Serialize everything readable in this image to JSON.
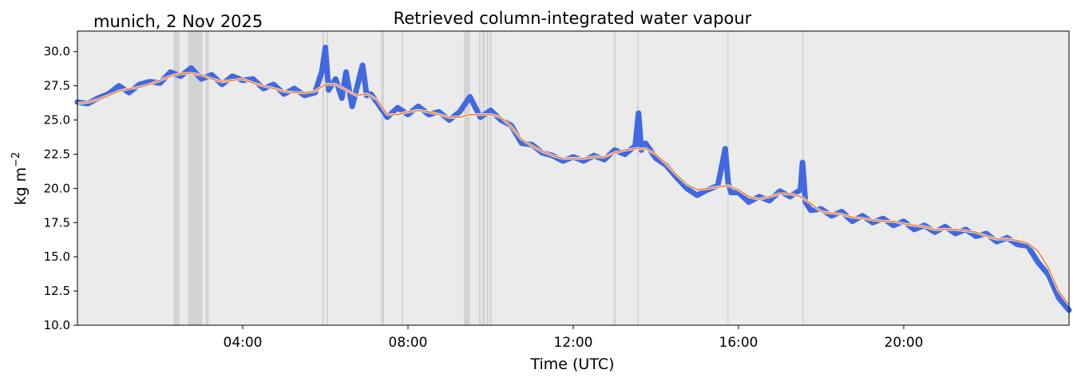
{
  "chart_data": {
    "type": "line",
    "title": "Retrieved column-integrated water vapour",
    "subtitle": "munich, 2 Nov 2025",
    "xlabel": "Time (UTC)",
    "ylabel": "kg m",
    "ylabel_sup": "−2",
    "x_unit": "hours UTC",
    "xlim": [
      0,
      24
    ],
    "ylim": [
      10.0,
      31.5
    ],
    "x_ticks": [
      4,
      8,
      12,
      16,
      20
    ],
    "x_tick_labels": [
      "04:00",
      "08:00",
      "12:00",
      "16:00",
      "20:00"
    ],
    "y_ticks": [
      10.0,
      12.5,
      15.0,
      17.5,
      20.0,
      22.5,
      25.0,
      27.5,
      30.0
    ],
    "y_tick_labels": [
      "10.0",
      "12.5",
      "15.0",
      "17.5",
      "20.0",
      "22.5",
      "25.0",
      "27.5",
      "30.0"
    ],
    "grid": false,
    "legend": "none",
    "colors": {
      "background": "#ebebeb",
      "raw_series": "#4169e1",
      "smoothed_series": "#f07828",
      "smoothed_edge": "#ffffff",
      "flagged_bands": "#d3d3d3"
    },
    "flagged_bands": [
      [
        2.33,
        2.47
      ],
      [
        2.67,
        3.03
      ],
      [
        3.1,
        3.18
      ],
      [
        5.93,
        5.97
      ],
      [
        6.03,
        6.07
      ],
      [
        7.35,
        7.42
      ],
      [
        7.85,
        7.88
      ],
      [
        9.35,
        9.5
      ],
      [
        9.72,
        9.76
      ],
      [
        9.8,
        9.86
      ],
      [
        9.9,
        9.95
      ],
      [
        9.98,
        10.03
      ],
      [
        12.98,
        13.03
      ],
      [
        13.55,
        13.58
      ],
      [
        15.73,
        15.76
      ],
      [
        17.55,
        17.58
      ]
    ],
    "series": [
      {
        "role": "smoothed",
        "x": [
          0,
          0.25,
          0.5,
          0.75,
          1.0,
          1.25,
          1.5,
          1.75,
          2.0,
          2.25,
          2.5,
          2.75,
          3.0,
          3.25,
          3.5,
          3.75,
          4.0,
          4.25,
          4.5,
          4.75,
          5.0,
          5.25,
          5.5,
          5.75,
          6.0,
          6.25,
          6.5,
          6.75,
          7.0,
          7.25,
          7.5,
          7.75,
          8.0,
          8.25,
          8.5,
          8.75,
          9.0,
          9.25,
          9.5,
          9.75,
          10.0,
          10.25,
          10.5,
          10.75,
          11.0,
          11.25,
          11.5,
          11.75,
          12.0,
          12.25,
          12.5,
          12.75,
          13.0,
          13.25,
          13.5,
          13.75,
          14.0,
          14.25,
          14.5,
          14.75,
          15.0,
          15.25,
          15.5,
          15.75,
          16.0,
          16.25,
          16.5,
          16.75,
          17.0,
          17.25,
          17.5,
          17.75,
          18.0,
          18.25,
          18.5,
          18.75,
          19.0,
          19.25,
          19.5,
          19.75,
          20.0,
          20.25,
          20.5,
          20.75,
          21.0,
          21.25,
          21.5,
          21.75,
          22.0,
          22.25,
          22.5,
          22.75,
          23.0,
          23.25,
          23.5,
          23.75,
          24.0
        ],
        "y": [
          26.2,
          26.3,
          26.5,
          26.8,
          27.1,
          27.3,
          27.4,
          27.6,
          27.9,
          28.2,
          28.4,
          28.4,
          28.3,
          28.0,
          27.8,
          27.9,
          28.0,
          27.7,
          27.5,
          27.3,
          27.1,
          27.0,
          27.0,
          27.1,
          27.6,
          27.6,
          27.2,
          26.8,
          26.9,
          26.5,
          25.4,
          25.4,
          25.6,
          25.7,
          25.6,
          25.4,
          25.2,
          25.2,
          25.4,
          25.4,
          25.4,
          25.2,
          24.5,
          23.6,
          23.1,
          22.7,
          22.4,
          22.2,
          22.2,
          22.2,
          22.3,
          22.3,
          22.6,
          22.8,
          22.9,
          22.9,
          22.5,
          21.8,
          21.0,
          20.3,
          19.9,
          20.0,
          20.1,
          20.2,
          19.9,
          19.4,
          19.2,
          19.4,
          19.6,
          19.6,
          19.4,
          18.9,
          18.3,
          18.2,
          18.1,
          17.9,
          17.8,
          17.7,
          17.6,
          17.6,
          17.4,
          17.3,
          17.2,
          17.0,
          17.0,
          17.0,
          16.9,
          16.8,
          16.5,
          16.3,
          16.3,
          16.2,
          16.0,
          15.4,
          14.2,
          12.5,
          11.5
        ]
      },
      {
        "role": "raw",
        "x": [
          0,
          0.25,
          0.5,
          0.75,
          1.0,
          1.25,
          1.5,
          1.75,
          2.0,
          2.25,
          2.5,
          2.75,
          3.0,
          3.25,
          3.5,
          3.75,
          4.0,
          4.25,
          4.5,
          4.75,
          5.0,
          5.25,
          5.5,
          5.75,
          5.92,
          6.0,
          6.08,
          6.25,
          6.4,
          6.5,
          6.65,
          6.75,
          6.9,
          7.0,
          7.1,
          7.25,
          7.5,
          7.75,
          8.0,
          8.25,
          8.5,
          8.75,
          9.0,
          9.25,
          9.5,
          9.75,
          10.0,
          10.25,
          10.5,
          10.75,
          11.0,
          11.25,
          11.5,
          11.75,
          12.0,
          12.25,
          12.5,
          12.75,
          13.0,
          13.25,
          13.5,
          13.58,
          13.65,
          13.75,
          14.0,
          14.25,
          14.5,
          14.75,
          15.0,
          15.25,
          15.5,
          15.68,
          15.75,
          15.82,
          16.0,
          16.25,
          16.5,
          16.75,
          17.0,
          17.25,
          17.5,
          17.55,
          17.62,
          17.75,
          18.0,
          18.25,
          18.5,
          18.75,
          19.0,
          19.25,
          19.5,
          19.75,
          20.0,
          20.25,
          20.5,
          20.75,
          21.0,
          21.25,
          21.5,
          21.75,
          22.0,
          22.25,
          22.5,
          22.75,
          23.0,
          23.25,
          23.5,
          23.75,
          24.0
        ],
        "y": [
          26.3,
          26.2,
          26.6,
          26.9,
          27.5,
          27.0,
          27.6,
          27.8,
          27.7,
          28.5,
          28.2,
          28.8,
          28.0,
          28.3,
          27.6,
          28.2,
          27.9,
          28.0,
          27.3,
          27.6,
          26.9,
          27.3,
          26.8,
          27.0,
          28.6,
          30.3,
          27.2,
          28.0,
          26.6,
          28.5,
          26.0,
          27.2,
          29.0,
          26.8,
          26.9,
          26.3,
          25.2,
          25.9,
          25.4,
          26.0,
          25.4,
          25.6,
          25.0,
          25.6,
          26.7,
          25.2,
          25.7,
          25.0,
          24.6,
          23.3,
          23.2,
          22.6,
          22.4,
          22.0,
          22.3,
          22.0,
          22.4,
          22.1,
          22.8,
          22.5,
          23.1,
          25.5,
          22.8,
          23.3,
          22.2,
          21.7,
          20.8,
          20.0,
          19.5,
          19.9,
          20.2,
          22.9,
          20.4,
          19.7,
          19.7,
          19.0,
          19.4,
          19.1,
          19.8,
          19.4,
          19.9,
          21.9,
          19.0,
          18.4,
          18.5,
          18.0,
          18.3,
          17.6,
          18.0,
          17.5,
          17.8,
          17.3,
          17.6,
          17.0,
          17.3,
          16.8,
          17.2,
          16.7,
          17.0,
          16.5,
          16.7,
          16.1,
          16.4,
          15.9,
          15.8,
          14.6,
          13.7,
          12.0,
          11.1
        ]
      }
    ]
  }
}
